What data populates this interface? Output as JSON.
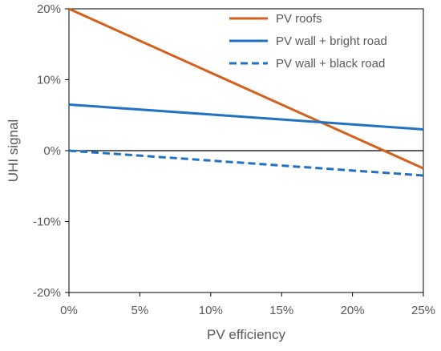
{
  "chart_data": {
    "type": "line",
    "title": "",
    "xlabel": "PV efficiency",
    "ylabel": "UHI signal",
    "xlim": [
      0,
      25
    ],
    "ylim": [
      -20,
      20
    ],
    "x_ticks": [
      0,
      5,
      10,
      15,
      20,
      25
    ],
    "x_tick_labels": [
      "0%",
      "5%",
      "10%",
      "15%",
      "20%",
      "25%"
    ],
    "y_ticks": [
      -20,
      -10,
      0,
      10,
      20
    ],
    "y_tick_labels": [
      "-20%",
      "-10%",
      "0%",
      "10%",
      "20%"
    ],
    "grid": false,
    "legend_position": "top-right",
    "series": [
      {
        "name": "PV roofs",
        "color": "#D4601C",
        "style": "solid",
        "x": [
          0,
          25
        ],
        "y": [
          20,
          -2.5
        ]
      },
      {
        "name": "PV wall + bright road",
        "color": "#2272C3",
        "style": "solid",
        "x": [
          0,
          25
        ],
        "y": [
          6.5,
          3.0
        ]
      },
      {
        "name": "PV wall + black road",
        "color": "#2272C3",
        "style": "dashed",
        "x": [
          0,
          25
        ],
        "y": [
          0,
          -3.5
        ]
      }
    ]
  }
}
